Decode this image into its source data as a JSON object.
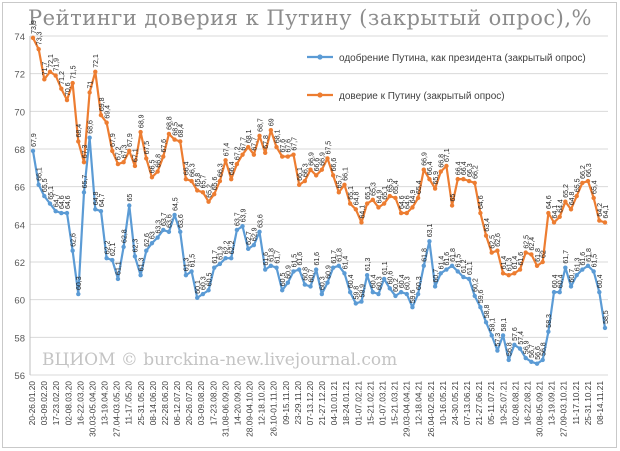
{
  "chart_data": {
    "type": "line",
    "title": "Рейтинги доверия к Путину (закрытый опрос),%",
    "watermark": "ВЦИОМ © burckina-new.livejournal.com",
    "ylim": [
      56,
      74
    ],
    "yticks": [
      "56",
      "58",
      "60",
      "62",
      "64",
      "66",
      "68",
      "70",
      "72",
      "74"
    ],
    "grid": true,
    "legend_position": "top-right",
    "x_tick_labels": [
      "20-26.01.20",
      "03-09.02.20",
      "17-23.02.20",
      "02-08.03.20",
      "16-22.03.20",
      "30.03-05.04.20",
      "13-19.04.20",
      "27.04-03.05.20",
      "11-17.05.20",
      "25-31.05.20",
      "08-14.06.20",
      "22-28.06.20",
      "06-12.07.20",
      "20-26.07.20",
      "03-09.08.20",
      "17-23.08.20",
      "31.08-06.09.20",
      "14-20.09.20",
      "28.09-04.10.20",
      "12-18.10.20",
      "26.10-01.11.20",
      "09-15.11.20",
      "23-29.11.20",
      "07-13.12.20",
      "21-27.12.20",
      "04-10.01.21",
      "18-24.01.21",
      "01-07.02.21",
      "15-21.02.21",
      "01-07.03.21",
      "15-21.03.21",
      "29.03-04.04.21",
      "12-18.04.21",
      "26.04-02.05.21",
      "10-16.05.21",
      "24-30.05.21",
      "07-13.06.21",
      "21-27.06.21",
      "05-11.07.21",
      "19-25.07.21",
      "02-08.08.21",
      "16-22.08.21",
      "30.08-05.09.21",
      "13-19.09.21",
      "27.09-03.10.21",
      "11-17.10.21",
      "25-31.10.21",
      "08-14.11.21"
    ],
    "series": [
      {
        "name": "одобрение Путина, как президента (закрытый опрос)",
        "color": "#5b9bd5",
        "labels": [
          "67,9",
          "66,1",
          "65,5",
          "65,1",
          "64,7",
          "64,6",
          "64,6",
          "62,6",
          "60,3",
          "65,7",
          "68,6",
          "64,8",
          "64,7",
          "62,2",
          "62,1",
          "61,1",
          "62,8",
          "65",
          "62,3",
          "61,3",
          "62,6",
          "63",
          "63,3",
          "63,7",
          "63,6",
          "64,5",
          "63,6",
          "61,3",
          "61,5",
          "60,1",
          "60,3",
          "60,5",
          "61,7",
          "61,9",
          "62,2",
          "62,2",
          "63,7",
          "63,9",
          "62,7",
          "62,9",
          "63,6",
          "61,6",
          "61,8",
          "61,7",
          "60,5",
          "60,9",
          "61,5",
          "61,6",
          "60,8",
          "60,7",
          "61,6",
          "60,3",
          "60,9",
          "61,7",
          "61,8",
          "61,4",
          "60,4",
          "59,8",
          "59,9",
          "61,3",
          "60,4",
          "60,3",
          "61,1",
          "60,6",
          "60,2",
          "60,4",
          "60,3",
          "59,6",
          "60,3",
          "61,8",
          "63,1",
          "60,7",
          "61,4",
          "61,6",
          "61,8",
          "61,5",
          "61,2",
          "61,1",
          "60,2",
          "59,6",
          "58,8",
          "58,1",
          "57,3",
          "58,1",
          "56,8",
          "57,6",
          "57,4",
          "56,9",
          "56,7",
          "56,6",
          "56,8",
          "58,3",
          "60,4",
          "60,4",
          "61,7",
          "60,7",
          "61,3",
          "61,6",
          "61,8",
          "61,5",
          "60,4",
          "58,5"
        ],
        "values": [
          67.9,
          66.1,
          65.5,
          65.1,
          64.7,
          64.6,
          64.6,
          62.6,
          60.3,
          65.7,
          68.6,
          64.8,
          64.7,
          62.2,
          62.1,
          61.1,
          62.8,
          65.0,
          62.3,
          61.3,
          62.6,
          63.0,
          63.3,
          63.7,
          63.6,
          64.5,
          63.6,
          61.3,
          61.5,
          60.1,
          60.3,
          60.5,
          61.7,
          61.9,
          62.2,
          62.2,
          63.7,
          63.9,
          62.7,
          62.9,
          63.6,
          61.6,
          61.8,
          61.7,
          60.5,
          60.9,
          61.5,
          61.6,
          60.8,
          60.7,
          61.6,
          60.3,
          60.9,
          61.7,
          61.8,
          61.4,
          60.4,
          59.8,
          59.9,
          61.3,
          60.4,
          60.3,
          61.1,
          60.6,
          60.2,
          60.4,
          60.3,
          59.6,
          60.3,
          61.8,
          63.1,
          60.7,
          61.4,
          61.6,
          61.8,
          61.5,
          61.2,
          61.1,
          60.2,
          59.6,
          58.8,
          58.1,
          57.3,
          58.1,
          56.8,
          57.6,
          57.4,
          56.9,
          56.7,
          56.6,
          56.8,
          58.3,
          60.4,
          60.4,
          61.7,
          60.7,
          61.3,
          61.6,
          61.8,
          61.5,
          60.4,
          58.5
        ]
      },
      {
        "name": "доверие к Путину (закрытый опрос)",
        "color": "#ed7d31",
        "labels": [
          "73,9",
          "73,3",
          "71,7",
          "72,1",
          "71,9",
          "71,2",
          "70,6",
          "71,5",
          "68,4",
          "67,3",
          "71",
          "72,1",
          "69,8",
          "69,4",
          "67,9",
          "67,2",
          "67,3",
          "67,9",
          "67,1",
          "68,9",
          "67,5",
          "66,5",
          "66,8",
          "67,6",
          "68,8",
          "68,5",
          "68,4",
          "66,4",
          "66,3",
          "65,8",
          "65,7",
          "65,2",
          "65,6",
          "66,3",
          "67,4",
          "66,4",
          "67,2",
          "67,7",
          "68,1",
          "67,7",
          "68,7",
          "67,8",
          "69",
          "68,1",
          "67,6",
          "67,6",
          "67,7",
          "66,1",
          "66,3",
          "66,9",
          "66,6",
          "66,9",
          "67,5",
          "66,6",
          "65,7",
          "66,1",
          "65,1",
          "64,8",
          "64,1",
          "65,1",
          "65,3",
          "64,9",
          "65,1",
          "65,5",
          "65,4",
          "64,6",
          "64,6",
          "64,9",
          "65,4",
          "66,9",
          "66,4",
          "65,9",
          "66,8",
          "67,1",
          "65",
          "66,4",
          "66,4",
          "66,3",
          "66,2",
          "64,6",
          "63,4",
          "62,5",
          "62,6",
          "61,4",
          "61,3",
          "61,4",
          "61,6",
          "62,5",
          "62,4",
          "61,8",
          "62",
          "64,6",
          "64,1",
          "64,4",
          "65,2",
          "64,8",
          "65,5",
          "66,2",
          "66,3",
          "65,4",
          "64,2",
          "64,1"
        ],
        "values": [
          73.9,
          73.3,
          71.7,
          72.1,
          71.9,
          71.2,
          70.6,
          71.5,
          68.4,
          67.3,
          71.0,
          72.1,
          69.8,
          69.4,
          67.9,
          67.2,
          67.3,
          67.9,
          67.1,
          68.9,
          67.5,
          66.5,
          66.8,
          67.6,
          68.8,
          68.5,
          68.4,
          66.4,
          66.3,
          65.8,
          65.7,
          65.2,
          65.6,
          66.3,
          67.4,
          66.4,
          67.2,
          67.7,
          68.1,
          67.7,
          68.7,
          67.8,
          69.0,
          68.1,
          67.6,
          67.6,
          67.7,
          66.1,
          66.3,
          66.9,
          66.6,
          66.9,
          67.5,
          66.6,
          65.7,
          66.1,
          65.1,
          64.8,
          64.1,
          65.1,
          65.3,
          64.9,
          65.1,
          65.5,
          65.4,
          64.6,
          64.6,
          64.9,
          65.4,
          66.9,
          66.4,
          65.9,
          66.8,
          67.1,
          65.0,
          66.4,
          66.4,
          66.3,
          66.2,
          64.6,
          63.4,
          62.5,
          62.6,
          61.4,
          61.3,
          61.4,
          61.6,
          62.5,
          62.4,
          61.8,
          62.0,
          64.6,
          64.1,
          64.4,
          65.2,
          64.8,
          65.5,
          66.2,
          66.3,
          65.4,
          64.2,
          64.1
        ]
      }
    ]
  }
}
